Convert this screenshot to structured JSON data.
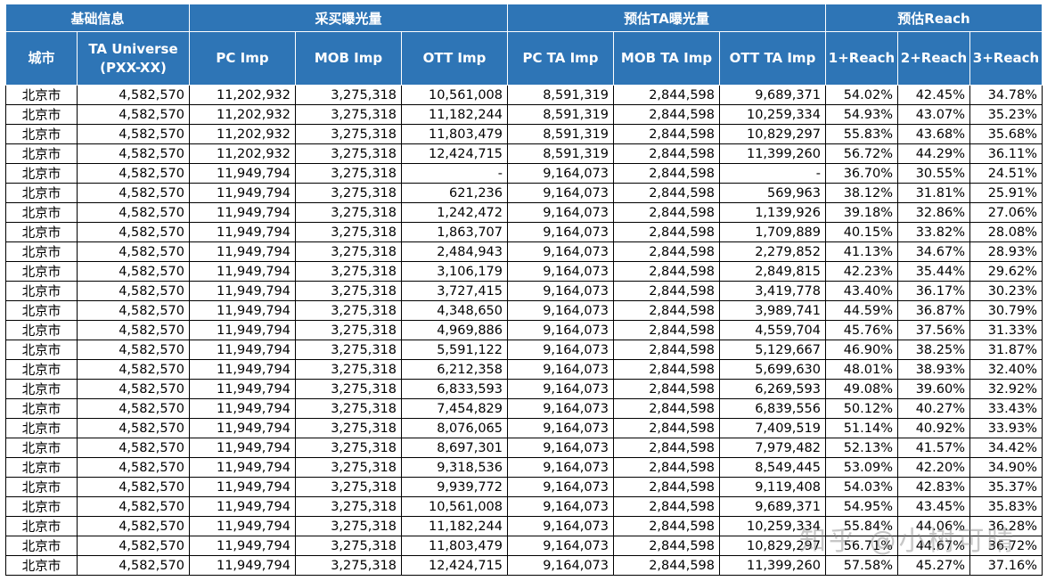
{
  "groups": [
    "基础信息",
    "采买曝光量",
    "预估TA曝光量",
    "预估Reach"
  ],
  "headers": {
    "city": "城市",
    "ta_universe": "TA Universe",
    "ta_universe_sub": "(PXX-XX)",
    "pc_imp": "PC Imp",
    "mob_imp": "MOB Imp",
    "ott_imp": "OTT Imp",
    "pc_ta_imp": "PC TA Imp",
    "mob_ta_imp": "MOB TA Imp",
    "ott_ta_imp": "OTT TA Imp",
    "reach1": "1+Reach",
    "reach2": "2+Reach",
    "reach3": "3+Reach"
  },
  "rows": [
    [
      "北京市",
      "4,582,570",
      "11,202,932",
      "3,275,318",
      "10,561,008",
      "8,591,319",
      "2,844,598",
      "9,689,371",
      "54.02%",
      "42.45%",
      "34.78%"
    ],
    [
      "北京市",
      "4,582,570",
      "11,202,932",
      "3,275,318",
      "11,182,244",
      "8,591,319",
      "2,844,598",
      "10,259,334",
      "54.93%",
      "43.07%",
      "35.23%"
    ],
    [
      "北京市",
      "4,582,570",
      "11,202,932",
      "3,275,318",
      "11,803,479",
      "8,591,319",
      "2,844,598",
      "10,829,297",
      "55.83%",
      "43.68%",
      "35.68%"
    ],
    [
      "北京市",
      "4,582,570",
      "11,202,932",
      "3,275,318",
      "12,424,715",
      "8,591,319",
      "2,844,598",
      "11,399,260",
      "56.72%",
      "44.29%",
      "36.11%"
    ],
    [
      "北京市",
      "4,582,570",
      "11,949,794",
      "3,275,318",
      "-",
      "9,164,073",
      "2,844,598",
      "-",
      "36.70%",
      "30.55%",
      "24.51%"
    ],
    [
      "北京市",
      "4,582,570",
      "11,949,794",
      "3,275,318",
      "621,236",
      "9,164,073",
      "2,844,598",
      "569,963",
      "38.12%",
      "31.81%",
      "25.91%"
    ],
    [
      "北京市",
      "4,582,570",
      "11,949,794",
      "3,275,318",
      "1,242,472",
      "9,164,073",
      "2,844,598",
      "1,139,926",
      "39.18%",
      "32.86%",
      "27.06%"
    ],
    [
      "北京市",
      "4,582,570",
      "11,949,794",
      "3,275,318",
      "1,863,707",
      "9,164,073",
      "2,844,598",
      "1,709,889",
      "40.15%",
      "33.82%",
      "28.08%"
    ],
    [
      "北京市",
      "4,582,570",
      "11,949,794",
      "3,275,318",
      "2,484,943",
      "9,164,073",
      "2,844,598",
      "2,279,852",
      "41.13%",
      "34.67%",
      "28.93%"
    ],
    [
      "北京市",
      "4,582,570",
      "11,949,794",
      "3,275,318",
      "3,106,179",
      "9,164,073",
      "2,844,598",
      "2,849,815",
      "42.23%",
      "35.44%",
      "29.62%"
    ],
    [
      "北京市",
      "4,582,570",
      "11,949,794",
      "3,275,318",
      "3,727,415",
      "9,164,073",
      "2,844,598",
      "3,419,778",
      "43.40%",
      "36.17%",
      "30.23%"
    ],
    [
      "北京市",
      "4,582,570",
      "11,949,794",
      "3,275,318",
      "4,348,650",
      "9,164,073",
      "2,844,598",
      "3,989,741",
      "44.59%",
      "36.87%",
      "30.79%"
    ],
    [
      "北京市",
      "4,582,570",
      "11,949,794",
      "3,275,318",
      "4,969,886",
      "9,164,073",
      "2,844,598",
      "4,559,704",
      "45.76%",
      "37.56%",
      "31.33%"
    ],
    [
      "北京市",
      "4,582,570",
      "11,949,794",
      "3,275,318",
      "5,591,122",
      "9,164,073",
      "2,844,598",
      "5,129,667",
      "46.90%",
      "38.25%",
      "31.87%"
    ],
    [
      "北京市",
      "4,582,570",
      "11,949,794",
      "3,275,318",
      "6,212,358",
      "9,164,073",
      "2,844,598",
      "5,699,630",
      "48.01%",
      "38.93%",
      "32.40%"
    ],
    [
      "北京市",
      "4,582,570",
      "11,949,794",
      "3,275,318",
      "6,833,593",
      "9,164,073",
      "2,844,598",
      "6,269,593",
      "49.08%",
      "39.60%",
      "32.92%"
    ],
    [
      "北京市",
      "4,582,570",
      "11,949,794",
      "3,275,318",
      "7,454,829",
      "9,164,073",
      "2,844,598",
      "6,839,556",
      "50.12%",
      "40.27%",
      "33.43%"
    ],
    [
      "北京市",
      "4,582,570",
      "11,949,794",
      "3,275,318",
      "8,076,065",
      "9,164,073",
      "2,844,598",
      "7,409,519",
      "51.14%",
      "40.92%",
      "33.93%"
    ],
    [
      "北京市",
      "4,582,570",
      "11,949,794",
      "3,275,318",
      "8,697,301",
      "9,164,073",
      "2,844,598",
      "7,979,482",
      "52.13%",
      "41.57%",
      "34.42%"
    ],
    [
      "北京市",
      "4,582,570",
      "11,949,794",
      "3,275,318",
      "9,318,536",
      "9,164,073",
      "2,844,598",
      "8,549,445",
      "53.09%",
      "42.20%",
      "34.90%"
    ],
    [
      "北京市",
      "4,582,570",
      "11,949,794",
      "3,275,318",
      "9,939,772",
      "9,164,073",
      "2,844,598",
      "9,119,408",
      "54.03%",
      "42.83%",
      "35.37%"
    ],
    [
      "北京市",
      "4,582,570",
      "11,949,794",
      "3,275,318",
      "10,561,008",
      "9,164,073",
      "2,844,598",
      "9,689,371",
      "54.95%",
      "43.45%",
      "35.83%"
    ],
    [
      "北京市",
      "4,582,570",
      "11,949,794",
      "3,275,318",
      "11,182,244",
      "9,164,073",
      "2,844,598",
      "10,259,334",
      "55.84%",
      "44.06%",
      "36.28%"
    ],
    [
      "北京市",
      "4,582,570",
      "11,949,794",
      "3,275,318",
      "11,803,479",
      "9,164,073",
      "2,844,598",
      "10,829,297",
      "56.71%",
      "44.67%",
      "36.72%"
    ],
    [
      "北京市",
      "4,582,570",
      "11,949,794",
      "3,275,318",
      "12,424,715",
      "9,164,073",
      "2,844,598",
      "11,399,260",
      "57.58%",
      "45.27%",
      "37.16%"
    ]
  ],
  "watermark": "知乎 @小树可晴"
}
